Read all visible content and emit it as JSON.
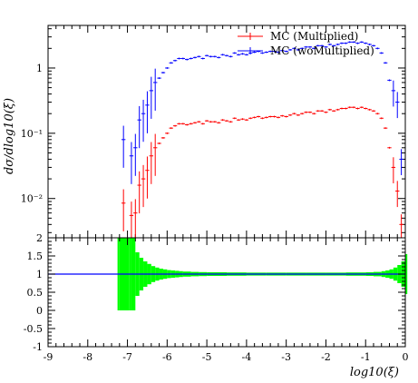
{
  "chart_data": [
    {
      "type": "scatter",
      "panel": "main",
      "xlabel": "log10(ξ)",
      "ylabel": "dσ/dlog10(ξ)",
      "xlim": [
        -9,
        0
      ],
      "ylim": [
        0.0025,
        4.5
      ],
      "log_y": true,
      "y_ticks": [
        "10⁻²",
        "10⁻¹",
        "1"
      ],
      "legend_position": "top-right",
      "series": [
        {
          "name": "MC (Multiplied)",
          "color": "#ff0000",
          "x": [
            -7.1,
            -6.9,
            -6.8,
            -6.7,
            -6.6,
            -6.5,
            -6.4,
            -6.3,
            -6.2,
            -6.1,
            -6.0,
            -5.9,
            -5.8,
            -5.7,
            -5.6,
            -5.5,
            -5.4,
            -5.3,
            -5.2,
            -5.1,
            -5.0,
            -4.9,
            -4.8,
            -4.7,
            -4.6,
            -4.5,
            -4.4,
            -4.3,
            -4.2,
            -4.1,
            -4.0,
            -3.9,
            -3.8,
            -3.7,
            -3.6,
            -3.5,
            -3.4,
            -3.3,
            -3.2,
            -3.1,
            -3.0,
            -2.9,
            -2.8,
            -2.7,
            -2.6,
            -2.5,
            -2.4,
            -2.3,
            -2.2,
            -2.1,
            -2.0,
            -1.9,
            -1.8,
            -1.7,
            -1.6,
            -1.5,
            -1.4,
            -1.3,
            -1.2,
            -1.1,
            -1.0,
            -0.9,
            -0.8,
            -0.7,
            -0.6,
            -0.5,
            -0.4,
            -0.3,
            -0.2,
            -0.1
          ],
          "y": [
            0.0085,
            0.0055,
            0.006,
            0.016,
            0.02,
            0.027,
            0.045,
            0.06,
            0.07,
            0.085,
            0.1,
            0.12,
            0.13,
            0.14,
            0.14,
            0.135,
            0.14,
            0.145,
            0.15,
            0.14,
            0.155,
            0.15,
            0.15,
            0.145,
            0.16,
            0.155,
            0.15,
            0.17,
            0.16,
            0.165,
            0.16,
            0.17,
            0.175,
            0.18,
            0.17,
            0.175,
            0.18,
            0.18,
            0.175,
            0.185,
            0.18,
            0.19,
            0.2,
            0.19,
            0.2,
            0.21,
            0.21,
            0.2,
            0.22,
            0.22,
            0.21,
            0.23,
            0.22,
            0.23,
            0.24,
            0.24,
            0.25,
            0.25,
            0.24,
            0.25,
            0.24,
            0.23,
            0.22,
            0.2,
            0.17,
            0.12,
            0.06,
            0.03,
            0.013,
            0.004
          ]
        },
        {
          "name": "MC (woMultiplied)",
          "color": "#0000ff",
          "x": [
            -7.1,
            -6.9,
            -6.8,
            -6.7,
            -6.6,
            -6.5,
            -6.4,
            -6.3,
            -6.2,
            -6.1,
            -6.0,
            -5.9,
            -5.8,
            -5.7,
            -5.6,
            -5.5,
            -5.4,
            -5.3,
            -5.2,
            -5.1,
            -5.0,
            -4.9,
            -4.8,
            -4.7,
            -4.6,
            -4.5,
            -4.4,
            -4.3,
            -4.2,
            -4.1,
            -4.0,
            -3.9,
            -3.8,
            -3.7,
            -3.6,
            -3.5,
            -3.4,
            -3.3,
            -3.2,
            -3.1,
            -3.0,
            -2.9,
            -2.8,
            -2.7,
            -2.6,
            -2.5,
            -2.4,
            -2.3,
            -2.2,
            -2.1,
            -2.0,
            -1.9,
            -1.8,
            -1.7,
            -1.6,
            -1.5,
            -1.4,
            -1.3,
            -1.2,
            -1.1,
            -1.0,
            -0.9,
            -0.8,
            -0.7,
            -0.6,
            -0.5,
            -0.4,
            -0.3,
            -0.2,
            -0.1
          ],
          "y": [
            0.08,
            0.045,
            0.06,
            0.16,
            0.2,
            0.27,
            0.45,
            0.6,
            0.7,
            0.85,
            1.0,
            1.2,
            1.3,
            1.4,
            1.4,
            1.35,
            1.4,
            1.45,
            1.5,
            1.4,
            1.55,
            1.5,
            1.5,
            1.45,
            1.6,
            1.55,
            1.5,
            1.7,
            1.6,
            1.65,
            1.6,
            1.7,
            1.75,
            1.8,
            1.7,
            1.75,
            1.8,
            1.8,
            1.75,
            1.85,
            1.8,
            1.9,
            2.0,
            1.9,
            2.0,
            2.1,
            2.1,
            2.0,
            2.2,
            2.2,
            2.1,
            2.3,
            2.2,
            2.3,
            2.4,
            2.4,
            2.5,
            2.5,
            2.4,
            2.5,
            2.4,
            2.3,
            2.2,
            2.0,
            1.7,
            1.2,
            0.65,
            0.45,
            0.3,
            0.04
          ]
        }
      ]
    },
    {
      "type": "area",
      "panel": "ratio",
      "xlabel": "log10(ξ)",
      "xlim": [
        -9,
        0
      ],
      "ylim": [
        -1,
        2
      ],
      "x_ticks": [
        "-9",
        "-8",
        "-7",
        "-6",
        "-5",
        "-4",
        "-3",
        "-2",
        "-1",
        "0"
      ],
      "y_ticks": [
        "-1",
        "-0.5",
        "0",
        "0.5",
        "1",
        "1.5",
        "2"
      ],
      "reference_line": {
        "y": 1,
        "color": "#0000ff"
      },
      "band_color": "#00ff00",
      "band": {
        "x": [
          -7.25,
          -7.2,
          -6.95,
          -6.9,
          -6.8,
          -6.7,
          -6.6,
          -6.5,
          -6.4,
          -6.3,
          -6.2,
          -6.1,
          -6.0,
          -5.9,
          -5.8,
          -5.7,
          -5.6,
          -5.4,
          -5.2,
          -5.0,
          -4.5,
          -4.0,
          -3.5,
          -3.0,
          -2.5,
          -2.0,
          -1.5,
          -1.0,
          -0.8,
          -0.6,
          -0.5,
          -0.4,
          -0.3,
          -0.2,
          -0.1,
          0.0
        ],
        "half_width": [
          1.0,
          1.0,
          1.0,
          1.0,
          0.6,
          0.45,
          0.35,
          0.28,
          0.22,
          0.18,
          0.15,
          0.13,
          0.11,
          0.1,
          0.09,
          0.08,
          0.07,
          0.06,
          0.055,
          0.05,
          0.045,
          0.04,
          0.04,
          0.04,
          0.04,
          0.04,
          0.045,
          0.05,
          0.06,
          0.08,
          0.1,
          0.13,
          0.18,
          0.25,
          0.35,
          0.55
        ]
      }
    }
  ]
}
